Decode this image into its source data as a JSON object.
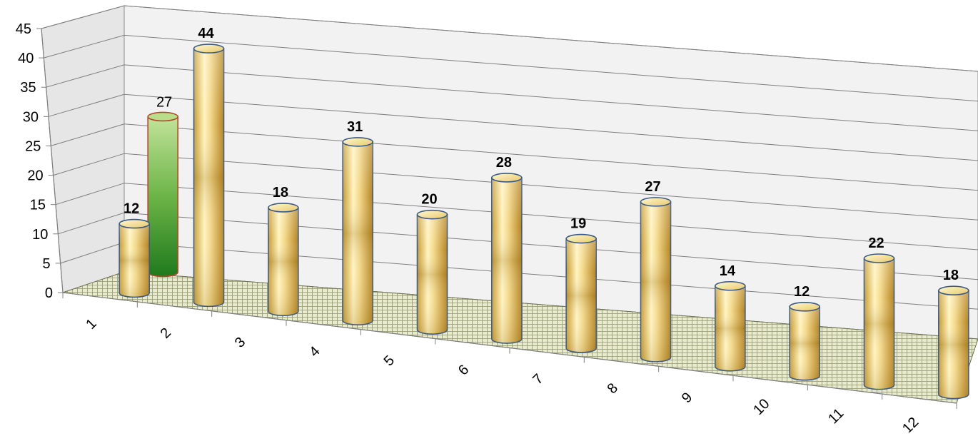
{
  "chart_data": {
    "type": "bar",
    "categories": [
      "1",
      "2",
      "3",
      "4",
      "5",
      "6",
      "7",
      "8",
      "9",
      "10",
      "11",
      "12"
    ],
    "series": [
      {
        "values": [
          12,
          44,
          18,
          31,
          20,
          28,
          19,
          27,
          14,
          12,
          22,
          18
        ]
      },
      {
        "values": [
          27,
          null,
          null,
          null,
          null,
          null,
          null,
          null,
          null,
          null,
          null,
          null
        ]
      }
    ],
    "ylim": [
      0,
      45
    ],
    "yticks": [
      "0",
      "5",
      "10",
      "15",
      "20",
      "25",
      "30",
      "35",
      "40",
      "45"
    ],
    "grid": true,
    "colors": {
      "primary_bar": "#d9b24a",
      "primary_bar_light": "#fff6c4",
      "secondary_bar": "#3f9a32",
      "secondary_bar_light": "#b8de8c",
      "floor": "#e4e6c8",
      "wall": "#f2f2f2",
      "gridline": "#7f7f7f",
      "bar_outline": "#3a5a88"
    }
  }
}
